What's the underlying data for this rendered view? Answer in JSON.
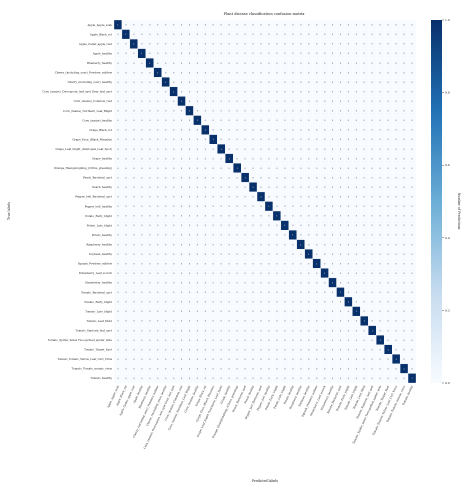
{
  "chart_data": {
    "type": "heatmap",
    "title": "Plant disease classification confusion matrix",
    "xlabel": "Predicted labels",
    "ylabel": "True labels",
    "colorbar_label": "Number of Predictions",
    "colorbar_ticks": [
      "0.0",
      "0.2",
      "0.4",
      "0.6",
      "0.8",
      "1.0"
    ],
    "colormap": [
      "#f7fbff",
      "#c6dbef",
      "#6baed6",
      "#2171b5",
      "#08306b"
    ],
    "cell_text_dark": "#222222",
    "cell_text_light": "#ffffff",
    "grid_color": "#ffffff",
    "labels": [
      "Apple_Apple_scab",
      "Apple_Black_rot",
      "Apple_Cedar_apple_rust",
      "Apple_healthy",
      "Blueberry_healthy",
      "Cherry_(including_sour)_Powdery_mildew",
      "Cherry_(including_sour)_healthy",
      "Corn_(maize)_Cercospora_leaf_spot Gray_leaf_spot",
      "Corn_(maize)_Common_rust",
      "Corn_(maize)_Northern_Leaf_Blight",
      "Corn_(maize)_healthy",
      "Grape_Black_rot",
      "Grape_Esca_(Black_Measles)",
      "Grape_Leaf_blight_(Isariopsis_Leaf_Spot)",
      "Grape_healthy",
      "Orange_Haunglongbing_(Citrus_greening)",
      "Peach_Bacterial_spot",
      "Peach_healthy",
      "Pepper_bell_Bacterial_spot",
      "Pepper_bell_healthy",
      "Potato_Early_blight",
      "Potato_Late_blight",
      "Potato_healthy",
      "Raspberry_healthy",
      "Soybean_healthy",
      "Squash_Powdery_mildew",
      "Strawberry_Leaf_scorch",
      "Strawberry_healthy",
      "Tomato_Bacterial_spot",
      "Tomato_Early_blight",
      "Tomato_Late_blight",
      "Tomato_Leaf_Mold",
      "Tomato_Septoria_leaf_spot",
      "Tomato_Spider_mites Two-spotted_spider_mite",
      "Tomato_Target_Spot",
      "Tomato_Tomato_Yellow_Leaf_Curl_Virus",
      "Tomato_Tomato_mosaic_virus",
      "Tomato_healthy"
    ],
    "diagonal_value": 1,
    "off_diagonal_value": 0,
    "value_range": [
      0,
      1
    ]
  }
}
